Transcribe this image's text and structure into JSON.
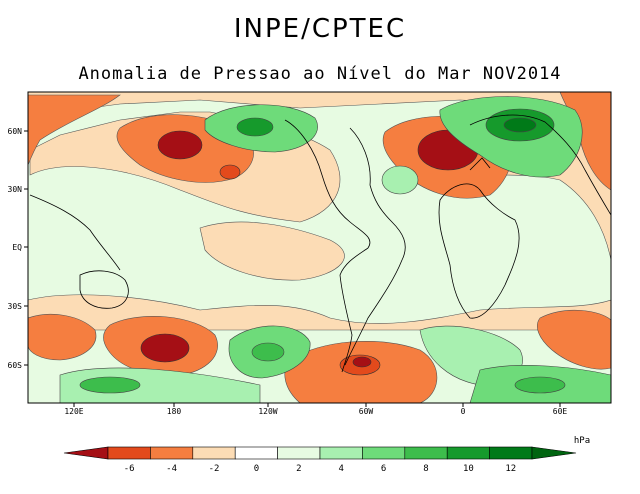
{
  "header": {
    "title": "INPE/CPTEC",
    "subtitle": "Anomalia de Pressao ao Nível do Mar NOV2014"
  },
  "map": {
    "lat_labels": [
      "60N",
      "30N",
      "EQ",
      "30S",
      "60S"
    ],
    "lon_labels": [
      "120E",
      "180",
      "120W",
      "60W",
      "0",
      "60E"
    ]
  },
  "colorbar": {
    "unit": "hPa",
    "ticks": [
      "-6",
      "-4",
      "-2",
      "0",
      "2",
      "4",
      "6",
      "8",
      "10",
      "12"
    ],
    "colors": [
      "#a50f15",
      "#e34a1c",
      "#f57e40",
      "#fcdcb5",
      "#ffffff",
      "#e7fbe2",
      "#a8f0b0",
      "#6edb7a",
      "#3dbd4c",
      "#169a2c",
      "#007a18",
      "#006410"
    ]
  }
}
